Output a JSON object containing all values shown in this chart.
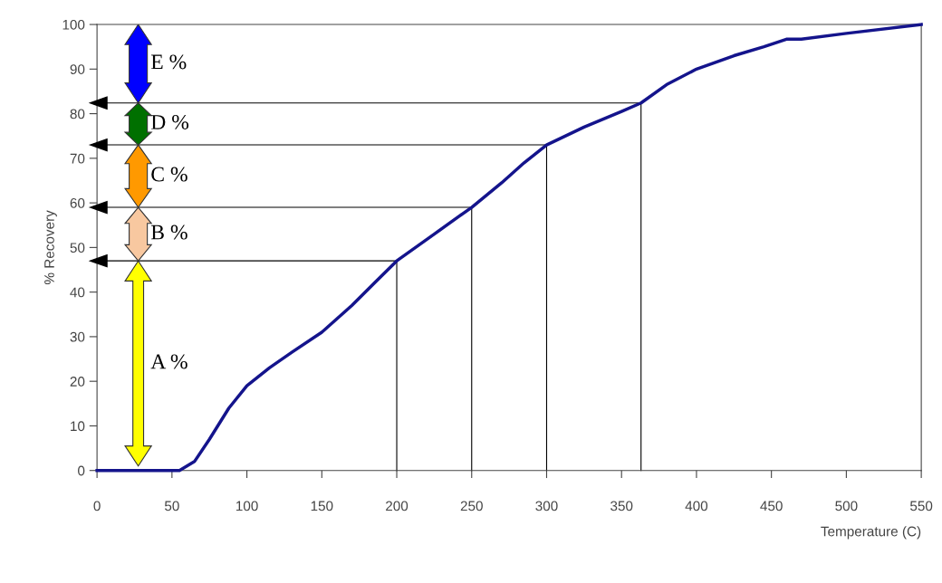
{
  "chart_data": {
    "type": "line",
    "xlabel": "Temperature (C)",
    "ylabel": "% Recovery",
    "xlim": [
      0,
      550
    ],
    "xticks": [
      0,
      50,
      100,
      150,
      200,
      250,
      300,
      350,
      400,
      450,
      500,
      550
    ],
    "ylim": [
      0,
      100
    ],
    "yticks": [
      0,
      10,
      20,
      30,
      40,
      50,
      60,
      70,
      80,
      90,
      100
    ],
    "grid": false,
    "marker": "none",
    "line_style": "solid",
    "series": [
      {
        "color": "#14148c",
        "x": [
          0,
          55,
          65,
          75,
          88,
          100,
          115,
          130,
          150,
          170,
          185,
          200,
          225,
          250,
          270,
          285,
          300,
          325,
          350,
          363,
          380,
          400,
          425,
          445,
          460,
          470,
          500,
          550
        ],
        "values": [
          0,
          0,
          2,
          7,
          14,
          19,
          23,
          26.5,
          31,
          37,
          42,
          47,
          53,
          59,
          64.5,
          69,
          73,
          77,
          80.5,
          82.4,
          86.5,
          90,
          93,
          95,
          96.7,
          96.7,
          98,
          100
        ]
      },
      {
        "color": "#000000",
        "x": [
          0,
          200,
          200
        ],
        "values": [
          47,
          47,
          0
        ]
      },
      {
        "color": "#000000",
        "x": [
          0,
          250,
          250
        ],
        "values": [
          59,
          59,
          0
        ]
      },
      {
        "color": "#000000",
        "x": [
          0,
          300,
          300
        ],
        "values": [
          73,
          73,
          0
        ]
      },
      {
        "color": "#000000",
        "x": [
          0,
          363,
          363
        ],
        "values": [
          82.4,
          82.4,
          0
        ]
      }
    ],
    "annotations": [
      "A %",
      "B %",
      "C %",
      "D %",
      "E %"
    ]
  }
}
